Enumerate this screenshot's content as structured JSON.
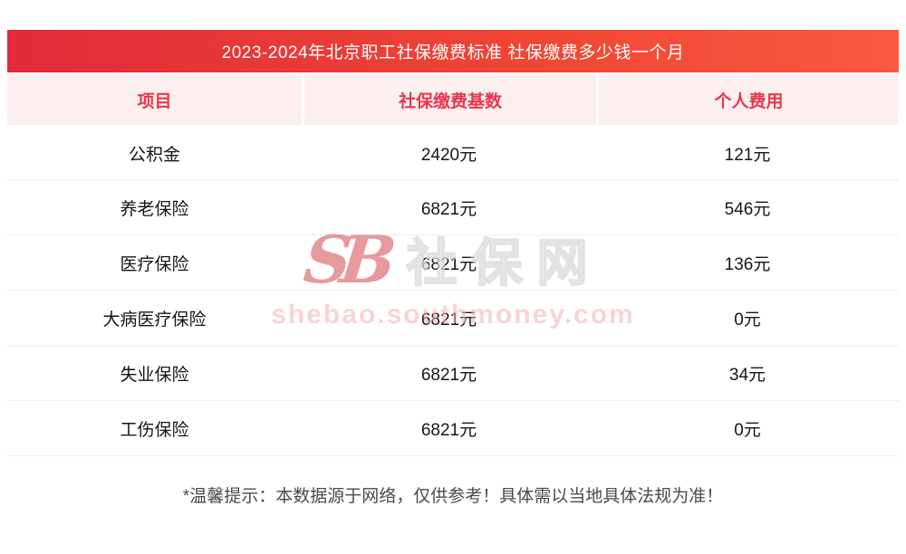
{
  "title": "2023-2024年北京职工社保缴费标准 社保缴费多少钱一个月",
  "table": {
    "headers": [
      "项目",
      "社保缴费基数",
      "个人费用"
    ],
    "rows": [
      [
        "公积金",
        "2420元",
        "121元"
      ],
      [
        "养老保险",
        "6821元",
        "546元"
      ],
      [
        "医疗保险",
        "6821元",
        "136元"
      ],
      [
        "大病医疗保险",
        "6821元",
        "0元"
      ],
      [
        "失业保险",
        "6821元",
        "34元"
      ],
      [
        "工伤保险",
        "6821元",
        "0元"
      ]
    ]
  },
  "footer": {
    "note": "*温馨提示：本数据源于网络，仅供参考！具体需以当地具体法规为准！"
  },
  "watermark": {
    "logo_text": "SB",
    "site_name": "社保网",
    "site_url": "shebao.southmoney.com"
  },
  "colors": {
    "title_gradient_start": "#e02b3a",
    "title_gradient_end": "#fa5a3e",
    "header_bg": "#fdeff0",
    "header_text": "#e8364d",
    "body_text": "#161616",
    "row_divider": "#efefef",
    "watermark_red": "#cd3036",
    "watermark_pink": "#eeb4b4"
  }
}
